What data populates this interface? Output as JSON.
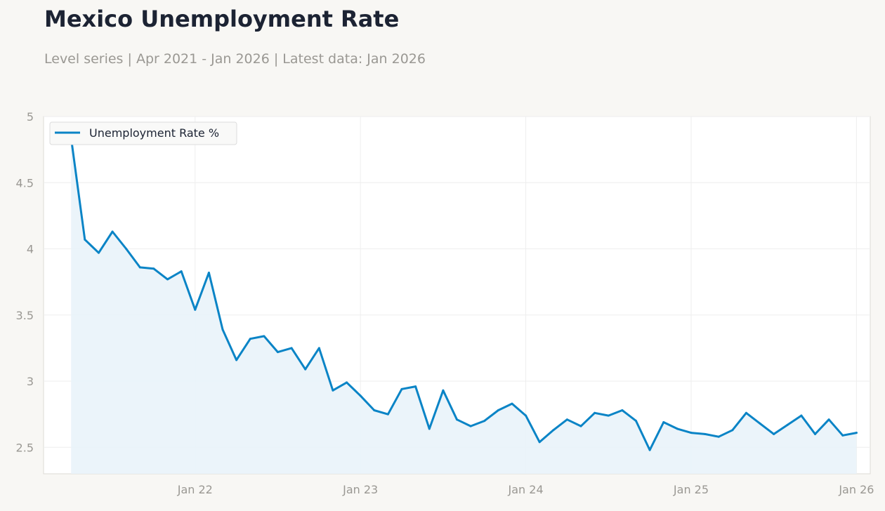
{
  "title": "Mexico Unemployment Rate",
  "subtitle": "Level series | Apr 2021 - Jan 2026 | Latest data: Jan 2026",
  "colors": {
    "line": "#0a84c6",
    "fill": "#e9f3fa",
    "background": "#f8f7f4",
    "plot_background": "#ffffff",
    "grid": "#eeeeee",
    "tick_text": "#9a9893"
  },
  "chart_data": {
    "type": "line",
    "title": "Mexico Unemployment Rate",
    "subtitle": "Level series | Apr 2021 - Jan 2026 | Latest data: Jan 2026",
    "xlabel": "",
    "ylabel": "",
    "ylim": [
      2.3,
      5.0
    ],
    "yticks": [
      2.5,
      3,
      3.5,
      4,
      4.5,
      5
    ],
    "ytick_labels": [
      "2.5",
      "3",
      "3.5",
      "4",
      "4.5",
      "5"
    ],
    "xticks": [
      "2022-01",
      "2023-01",
      "2024-01",
      "2025-01",
      "2026-01"
    ],
    "xtick_labels": [
      "Jan 22",
      "Jan 23",
      "Jan 24",
      "Jan 25",
      "Jan 26"
    ],
    "x_range": [
      "2021-02",
      "2026-02"
    ],
    "grid": true,
    "area_fill": true,
    "legend": "top-left",
    "x": [
      "2021-04",
      "2021-05",
      "2021-06",
      "2021-07",
      "2021-08",
      "2021-09",
      "2021-10",
      "2021-11",
      "2021-12",
      "2022-01",
      "2022-02",
      "2022-03",
      "2022-04",
      "2022-05",
      "2022-06",
      "2022-07",
      "2022-08",
      "2022-09",
      "2022-10",
      "2022-11",
      "2022-12",
      "2023-01",
      "2023-02",
      "2023-03",
      "2023-04",
      "2023-05",
      "2023-06",
      "2023-07",
      "2023-08",
      "2023-09",
      "2023-10",
      "2023-11",
      "2023-12",
      "2024-01",
      "2024-02",
      "2024-03",
      "2024-04",
      "2024-05",
      "2024-06",
      "2024-07",
      "2024-08",
      "2024-09",
      "2024-10",
      "2024-11",
      "2024-12",
      "2025-01",
      "2025-02",
      "2025-03",
      "2025-04",
      "2025-05",
      "2025-06",
      "2025-07",
      "2025-08",
      "2025-09",
      "2025-10",
      "2025-11",
      "2025-12",
      "2026-01"
    ],
    "series": [
      {
        "name": "Unemployment Rate %",
        "values": [
          4.84,
          4.07,
          3.97,
          4.13,
          4.0,
          3.86,
          3.85,
          3.77,
          3.83,
          3.54,
          3.82,
          3.39,
          3.16,
          3.32,
          3.34,
          3.22,
          3.25,
          3.09,
          3.25,
          2.93,
          2.99,
          2.89,
          2.78,
          2.75,
          2.94,
          2.96,
          2.64,
          2.93,
          2.71,
          2.66,
          2.7,
          2.78,
          2.83,
          2.74,
          2.54,
          2.63,
          2.71,
          2.66,
          2.76,
          2.74,
          2.78,
          2.7,
          2.48,
          2.69,
          2.64,
          2.61,
          2.6,
          2.58,
          2.63,
          2.76,
          2.68,
          2.6,
          2.67,
          2.74,
          2.6,
          2.71,
          2.59,
          2.61
        ]
      }
    ]
  }
}
